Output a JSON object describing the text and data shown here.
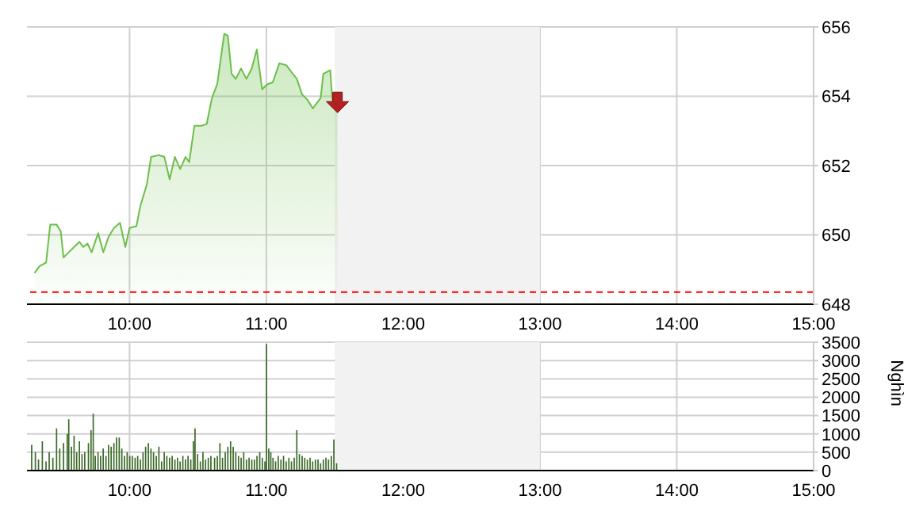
{
  "chart_data": [
    {
      "type": "area",
      "color": "#6cbf4a",
      "x": [
        9.305,
        9.343,
        9.39,
        9.42,
        9.466,
        9.497,
        9.517,
        9.556,
        9.595,
        9.634,
        9.661,
        9.692,
        9.723,
        9.77,
        9.808,
        9.847,
        9.886,
        9.93,
        9.969,
        10.0,
        10.05,
        10.08,
        10.126,
        10.157,
        10.215,
        10.254,
        10.293,
        10.331,
        10.37,
        10.409,
        10.436,
        10.474,
        10.525,
        10.564,
        10.602,
        10.641,
        10.667,
        10.692,
        10.718,
        10.746,
        10.776,
        10.815,
        10.854,
        10.893,
        10.93,
        10.969,
        11.007,
        11.046,
        11.095,
        11.145,
        11.183,
        11.223,
        11.261,
        11.3,
        11.339,
        11.397,
        11.416,
        11.467,
        11.482,
        11.52
      ],
      "values": [
        648.9,
        649.1,
        649.2,
        650.3,
        650.3,
        650.1,
        649.35,
        649.5,
        649.65,
        649.8,
        649.65,
        649.75,
        649.5,
        650.05,
        649.5,
        649.95,
        650.2,
        650.35,
        649.65,
        650.2,
        650.25,
        650.85,
        651.45,
        652.25,
        652.3,
        652.25,
        651.6,
        652.25,
        651.9,
        652.25,
        652.1,
        653.15,
        653.15,
        653.2,
        653.95,
        654.35,
        655.1,
        655.8,
        655.75,
        654.65,
        654.5,
        654.8,
        654.5,
        654.8,
        655.35,
        654.2,
        654.35,
        654.4,
        654.95,
        654.9,
        654.7,
        654.5,
        654.05,
        653.9,
        653.65,
        653.95,
        654.65,
        654.75,
        653.9,
        653.8
      ],
      "xlim": [
        9.25,
        15
      ],
      "xticks": [
        {
          "value": 10,
          "label": "10:00"
        },
        {
          "value": 11,
          "label": "11:00"
        },
        {
          "value": 12,
          "label": "12:00"
        },
        {
          "value": 13,
          "label": "13:00"
        },
        {
          "value": 14,
          "label": "14:00"
        },
        {
          "value": 15,
          "label": "15:00"
        }
      ],
      "ylim": [
        648,
        656
      ],
      "yticks": [
        648,
        650,
        652,
        654,
        656
      ],
      "grid": true,
      "ref_lines": [
        {
          "axis": "y",
          "value": 648.35,
          "color": "#ff0000",
          "line_style": "dashed"
        }
      ],
      "bands": [
        {
          "axis": "x",
          "from": 11.5,
          "to": 13,
          "color": "#f2f2f2"
        }
      ]
    },
    {
      "type": "bar",
      "color": "#3d6b2a",
      "ylabel": "Nghìn",
      "x": [
        9.285,
        9.312,
        9.335,
        9.363,
        9.39,
        9.413,
        9.44,
        9.467,
        9.49,
        9.518,
        9.545,
        9.556,
        9.576,
        9.595,
        9.614,
        9.634,
        9.653,
        9.673,
        9.7,
        9.719,
        9.735,
        9.75,
        9.77,
        9.789,
        9.808,
        9.828,
        9.847,
        9.866,
        9.886,
        9.905,
        9.925,
        9.944,
        9.963,
        9.983,
        10.002,
        10.021,
        10.041,
        10.06,
        10.08,
        10.099,
        10.118,
        10.138,
        10.157,
        10.176,
        10.196,
        10.215,
        10.235,
        10.254,
        10.273,
        10.293,
        10.312,
        10.332,
        10.351,
        10.37,
        10.39,
        10.409,
        10.428,
        10.448,
        10.467,
        10.479,
        10.498,
        10.518,
        10.537,
        10.556,
        10.576,
        10.595,
        10.622,
        10.642,
        10.661,
        10.68,
        10.7,
        10.719,
        10.739,
        10.758,
        10.777,
        10.797,
        10.816,
        10.835,
        10.855,
        10.874,
        10.894,
        10.913,
        10.932,
        10.952,
        10.971,
        10.99,
        11.002,
        11.018,
        11.033,
        11.049,
        11.068,
        11.087,
        11.107,
        11.126,
        11.145,
        11.165,
        11.184,
        11.204,
        11.223,
        11.242,
        11.262,
        11.281,
        11.3,
        11.32,
        11.339,
        11.359,
        11.378,
        11.397,
        11.417,
        11.436,
        11.455,
        11.475,
        11.494,
        11.514
      ],
      "values": [
        700,
        500,
        300,
        800,
        250,
        500,
        350,
        1150,
        600,
        750,
        1000,
        1400,
        650,
        950,
        500,
        800,
        450,
        500,
        750,
        1100,
        1550,
        400,
        500,
        400,
        600,
        400,
        700,
        650,
        750,
        900,
        900,
        600,
        400,
        500,
        400,
        400,
        350,
        400,
        300,
        500,
        650,
        750,
        600,
        500,
        400,
        650,
        250,
        500,
        400,
        350,
        400,
        300,
        350,
        250,
        400,
        300,
        400,
        300,
        800,
        1150,
        450,
        250,
        500,
        300,
        350,
        400,
        350,
        400,
        750,
        350,
        500,
        650,
        800,
        650,
        500,
        400,
        350,
        500,
        300,
        350,
        300,
        300,
        400,
        500,
        350,
        250,
        3450,
        600,
        500,
        350,
        250,
        400,
        300,
        400,
        250,
        350,
        250,
        350,
        1100,
        450,
        400,
        350,
        300,
        350,
        250,
        300,
        300,
        200,
        300,
        350,
        300,
        400,
        850,
        200
      ],
      "xlim": [
        9.25,
        15
      ],
      "xticks": [
        {
          "value": 10,
          "label": "10:00"
        },
        {
          "value": 11,
          "label": "11:00"
        },
        {
          "value": 12,
          "label": "12:00"
        },
        {
          "value": 13,
          "label": "13:00"
        },
        {
          "value": 14,
          "label": "14:00"
        },
        {
          "value": 15,
          "label": "15:00"
        }
      ],
      "ylim": [
        0,
        3500
      ],
      "yticks": [
        0,
        500,
        1000,
        1500,
        2000,
        2500,
        3000,
        3500
      ],
      "grid": true,
      "bands": [
        {
          "axis": "x",
          "from": 11.5,
          "to": 13,
          "color": "#f2f2f2"
        }
      ]
    }
  ]
}
